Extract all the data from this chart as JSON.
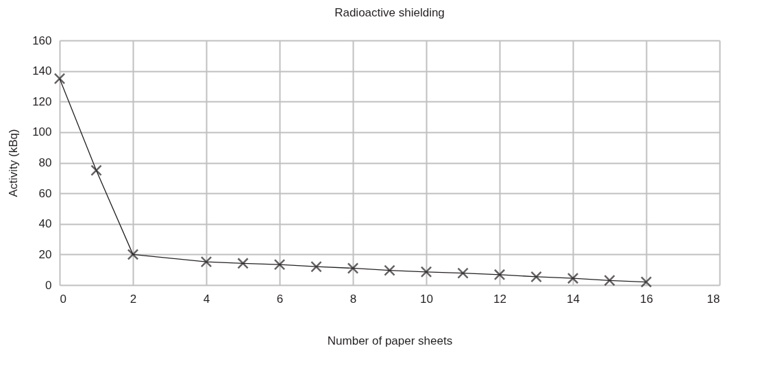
{
  "chart_data": {
    "type": "line",
    "title": "Radioactive shielding",
    "xlabel": "Number of paper sheets",
    "ylabel": "Activity (kBq)",
    "x": [
      0,
      1,
      2,
      4,
      5,
      6,
      7,
      8,
      9,
      10,
      11,
      12,
      13,
      14,
      15,
      16
    ],
    "series": [
      {
        "color": "#231f20",
        "values": [
          135,
          75,
          20,
          15.2,
          14.2,
          13.4,
          12,
          11,
          9.6,
          8.6,
          7.8,
          6.8,
          5.4,
          4.4,
          3,
          2
        ]
      }
    ],
    "xlim": [
      0,
      18
    ],
    "xticks": [
      0,
      2,
      4,
      6,
      8,
      10,
      12,
      14,
      16,
      18
    ],
    "ylim": [
      0,
      160
    ],
    "yticks": [
      0,
      20,
      40,
      60,
      80,
      100,
      120,
      140,
      160
    ],
    "grid": true,
    "marker": "cross",
    "line_style": "solid"
  }
}
